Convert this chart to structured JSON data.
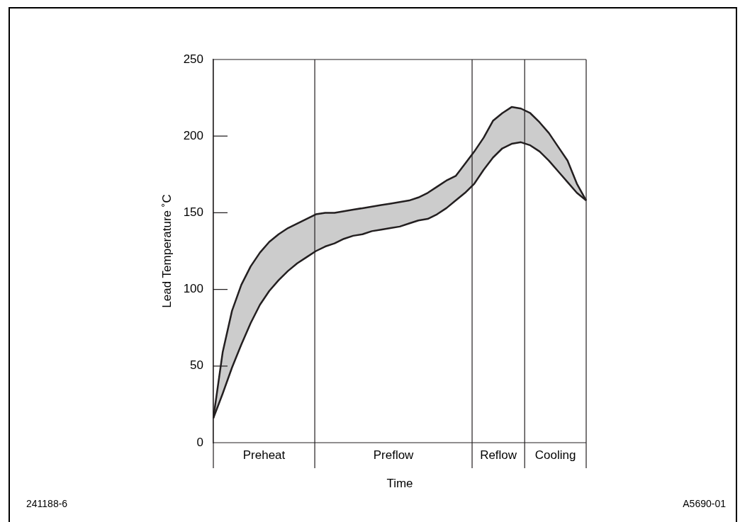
{
  "chart_data": {
    "type": "line",
    "xlabel": "Time",
    "ylabel": "Lead Temperature ˚C",
    "categories": [
      null,
      null,
      null,
      null,
      null,
      null,
      null,
      null,
      null,
      null,
      null,
      null,
      null,
      null,
      null,
      null,
      null,
      null,
      null,
      null,
      null,
      null,
      null,
      null,
      null,
      null,
      null,
      null,
      null,
      null,
      null,
      null,
      null,
      null,
      null,
      null,
      null,
      null,
      null,
      null,
      null
    ],
    "ylim": [
      0,
      250
    ],
    "yticks": [
      0,
      50,
      100,
      150,
      200,
      250
    ],
    "tick_labels": "y",
    "grid": false,
    "marker": "none",
    "line_style": "solid",
    "series": [
      {
        "color": "#231f20",
        "values": [
          16,
          32,
          49,
          64,
          78,
          90,
          99,
          106,
          112,
          117,
          121,
          125,
          128,
          130,
          133,
          135,
          136,
          138,
          139,
          140,
          141,
          143,
          145,
          146,
          149,
          153,
          158,
          163,
          169,
          178,
          186,
          192,
          195,
          196,
          194,
          190,
          184,
          177,
          170,
          163,
          158
        ]
      },
      {
        "type": "area",
        "color": "#cccccc",
        "values": [
          16,
          59,
          86,
          103,
          115,
          124,
          131,
          136,
          140,
          143,
          146,
          149,
          150,
          150,
          151,
          152,
          153,
          154,
          155,
          156,
          157,
          158,
          160,
          163,
          167,
          171,
          174,
          182,
          190,
          199,
          210,
          215,
          219,
          218,
          215,
          209,
          202,
          193,
          184,
          169,
          158
        ]
      }
    ],
    "annotations": [
      "Preheat",
      "Preflow",
      "Reflow",
      "Cooling",
      "241188-6",
      "A5690-01"
    ]
  }
}
